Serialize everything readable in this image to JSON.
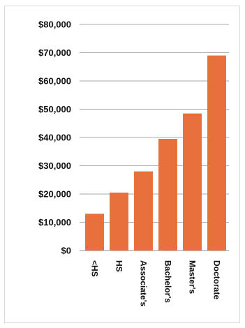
{
  "chart_data": {
    "type": "bar",
    "title": "",
    "xlabel": "",
    "ylabel": "",
    "categories": [
      "<HS",
      "HS",
      "Associate's",
      "Bachelor's",
      "Master's",
      "Doctorate"
    ],
    "values": [
      13000,
      20500,
      28000,
      39500,
      48500,
      69000
    ],
    "ylim": [
      0,
      80000
    ],
    "yticks": [
      0,
      10000,
      20000,
      30000,
      40000,
      50000,
      60000,
      70000,
      80000
    ],
    "ytick_labels": [
      "$0",
      "$10,000",
      "$20,000",
      "$30,000",
      "$40,000",
      "$50,000",
      "$60,000",
      "$70,000",
      "$80,000"
    ],
    "grid": true,
    "legend": "none",
    "bar_color": "#e8703d",
    "grid_color": "#8c8c8c"
  }
}
